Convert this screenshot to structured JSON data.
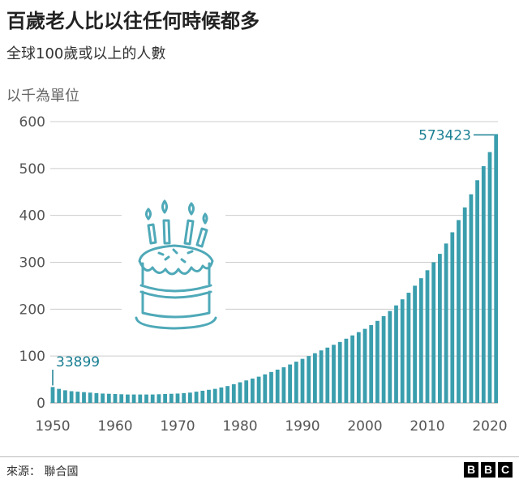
{
  "header": {
    "title": "百歲老人比以往任何時候都多",
    "subtitle": "全球100歲或以上的人數",
    "unit": "以千為單位"
  },
  "footer": {
    "source": "來源： 聯合國",
    "logo_letters": [
      "B",
      "B",
      "C"
    ]
  },
  "colors": {
    "bar": "#3a9ead",
    "grid": "#cccccc",
    "axis_text": "#555555",
    "annotation": "#1a7f93",
    "cake": "#4fa9b8"
  },
  "illustration": "birthday-cake-icon",
  "chart_data": {
    "type": "bar",
    "title": "百歲老人比以往任何時候都多",
    "subtitle": "全球100歲或以上的人數",
    "ylabel": "以千為單位",
    "ylim": [
      0,
      600
    ],
    "yticks": [
      0,
      100,
      200,
      300,
      400,
      500,
      600
    ],
    "xticks": [
      1950,
      1960,
      1970,
      1980,
      1990,
      2000,
      2010,
      2020
    ],
    "grid": true,
    "annotations": [
      {
        "year": 1950,
        "label": "33899"
      },
      {
        "year": 2021,
        "label": "573423"
      }
    ],
    "categories": [
      1950,
      1951,
      1952,
      1953,
      1954,
      1955,
      1956,
      1957,
      1958,
      1959,
      1960,
      1961,
      1962,
      1963,
      1964,
      1965,
      1966,
      1967,
      1968,
      1969,
      1970,
      1971,
      1972,
      1973,
      1974,
      1975,
      1976,
      1977,
      1978,
      1979,
      1980,
      1981,
      1982,
      1983,
      1984,
      1985,
      1986,
      1987,
      1988,
      1989,
      1990,
      1991,
      1992,
      1993,
      1994,
      1995,
      1996,
      1997,
      1998,
      1999,
      2000,
      2001,
      2002,
      2003,
      2004,
      2005,
      2006,
      2007,
      2008,
      2009,
      2010,
      2011,
      2012,
      2013,
      2014,
      2015,
      2016,
      2017,
      2018,
      2019,
      2020,
      2021
    ],
    "values": [
      33.9,
      30,
      27,
      25,
      24,
      23,
      22,
      21,
      20,
      19.5,
      19,
      18.5,
      18,
      18,
      18,
      18,
      18,
      18.5,
      19,
      19.5,
      20,
      21,
      22,
      24,
      26,
      28,
      30,
      33,
      36,
      40,
      44,
      48,
      52,
      56,
      61,
      66,
      71,
      76,
      82,
      88,
      94,
      100,
      106,
      112,
      118,
      124,
      130,
      137,
      144,
      151,
      158,
      166,
      175,
      185,
      196,
      208,
      221,
      235,
      250,
      266,
      283,
      300,
      318,
      340,
      364,
      390,
      417,
      445,
      475,
      505,
      535,
      573.4
    ]
  }
}
